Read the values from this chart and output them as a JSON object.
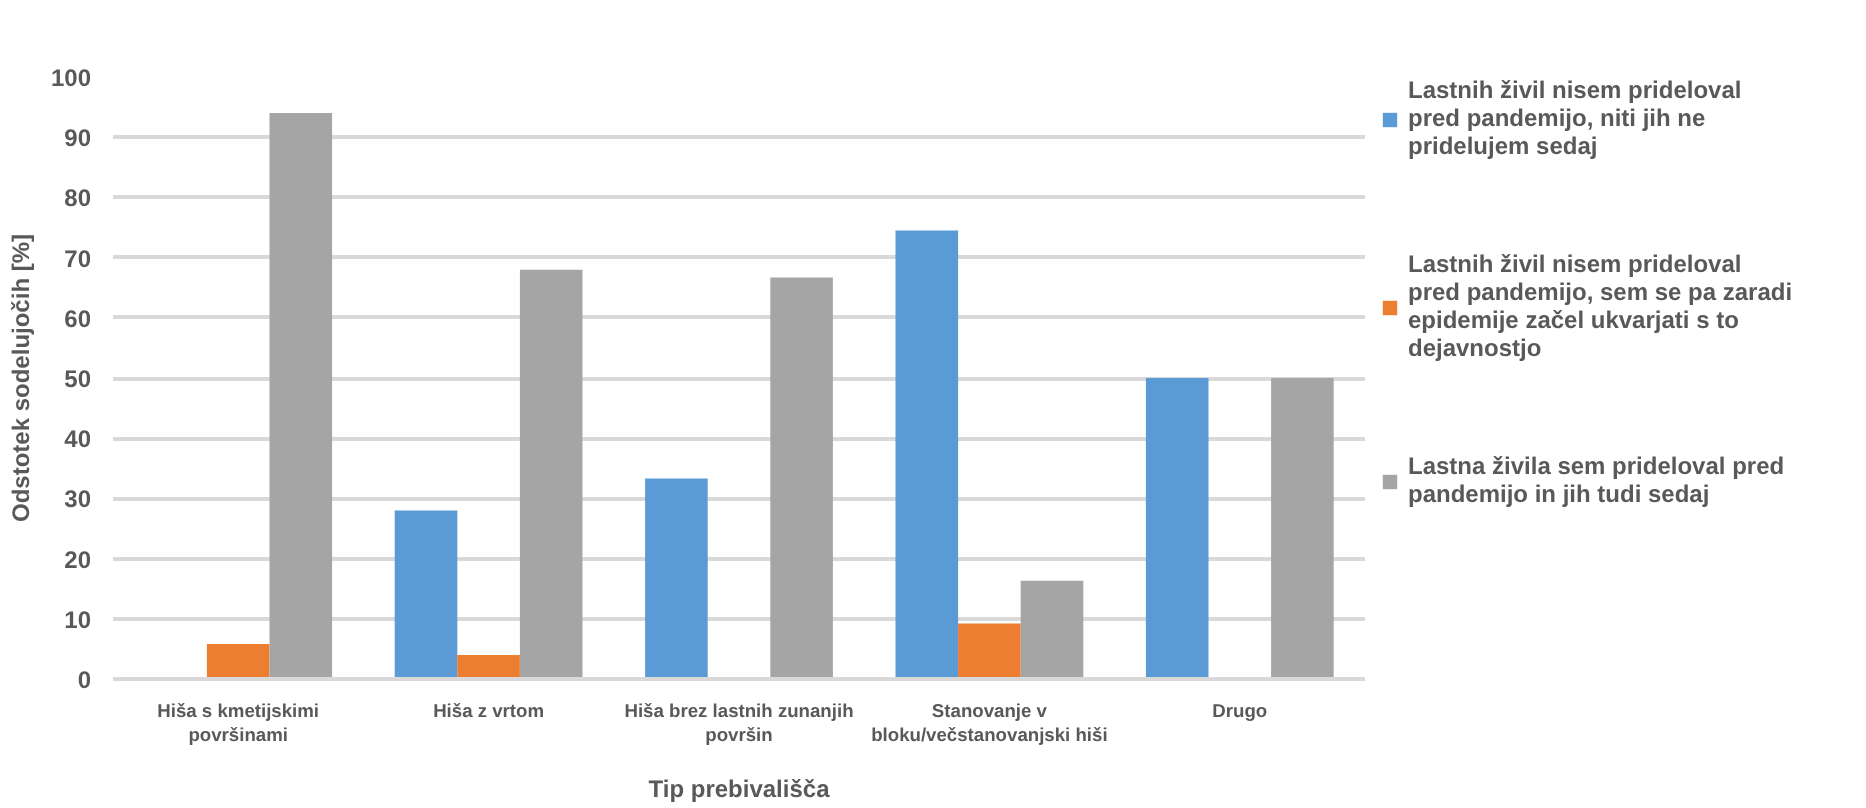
{
  "chart_data": {
    "type": "bar",
    "xlabel": "Tip prebivališča",
    "ylabel": "Odstotek sodelujočih [%]",
    "categories": [
      "Hiša s kmetijskimi površinami",
      "Hiša z vrtom",
      "Hiša brez lastnih zunanjih površin",
      "Stanovanje v bloku/večstanovanjski hiši",
      "Drugo"
    ],
    "series": [
      {
        "name": "Lastnih živil nisem prideloval pred pandemijo, niti jih ne pridelujem sedaj",
        "color": "#5b9bd5",
        "values": [
          0,
          28,
          33.3,
          74.5,
          50
        ]
      },
      {
        "name": "Lastnih živil nisem prideloval pred pandemijo, sem se pa zaradi epidemije začel ukvarjati s to dejavnostjo",
        "color": "#ed7d31",
        "values": [
          5.8,
          4,
          0,
          9.2,
          0
        ]
      },
      {
        "name": "Lastna živila sem prideloval pred pandemijo in jih tudi sedaj",
        "color": "#a5a5a5",
        "values": [
          94,
          68,
          66.7,
          16.3,
          50
        ]
      }
    ],
    "ylim": [
      0,
      100
    ],
    "yticks": [
      0,
      10,
      20,
      30,
      40,
      50,
      60,
      70,
      80,
      90,
      100
    ],
    "grid": "y",
    "legend": "right"
  }
}
